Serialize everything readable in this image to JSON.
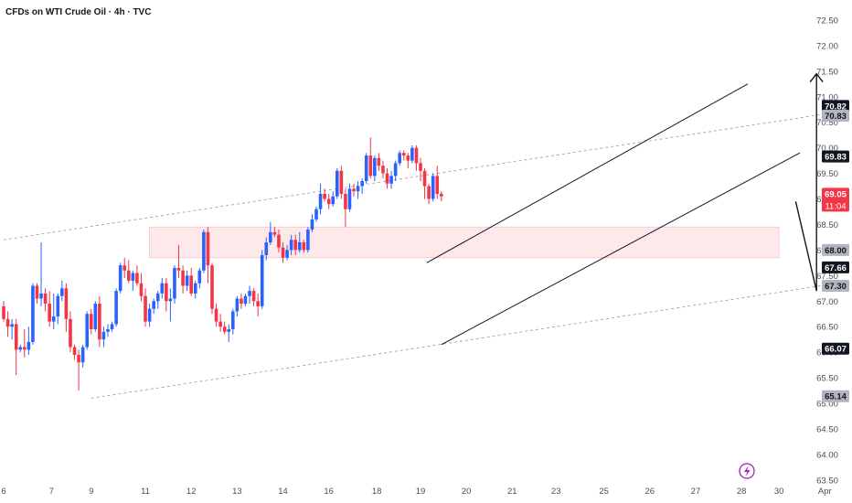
{
  "header": {
    "title": "CFDs on WTI Crude Oil · 4h · TVC"
  },
  "colors": {
    "up": "#2962ff",
    "down": "#f23645",
    "zone": "#fde8ea",
    "zone_border": "#f7c3c8",
    "line": "#131722",
    "dash": "#9598a1",
    "axis_text": "#4a4e5a",
    "logo": "#9c27b0"
  },
  "icons": {
    "watermark": "lightning-bolt-icon"
  },
  "chart_data": {
    "type": "candlestick",
    "title": "CFDs on WTI Crude Oil · 4h · TVC",
    "ylim": [
      63.3,
      72.75
    ],
    "y_ticks": [
      "72.50",
      "72.00",
      "71.50",
      "71.00",
      "70.50",
      "70.00",
      "69.50",
      "69.00",
      "68.50",
      "68.00",
      "67.50",
      "67.00",
      "66.50",
      "66.00",
      "65.50",
      "65.00",
      "64.50",
      "64.00",
      "63.50"
    ],
    "x_ticks": [
      {
        "label": "6",
        "x": 0
      },
      {
        "label": "7",
        "x": 11.5
      },
      {
        "label": "9",
        "x": 21
      },
      {
        "label": "11",
        "x": 34
      },
      {
        "label": "12",
        "x": 45
      },
      {
        "label": "13",
        "x": 56
      },
      {
        "label": "14",
        "x": 67
      },
      {
        "label": "16",
        "x": 78
      },
      {
        "label": "18",
        "x": 89.5
      },
      {
        "label": "19",
        "x": 100
      },
      {
        "label": "20",
        "x": 111
      },
      {
        "label": "21",
        "x": 122
      },
      {
        "label": "23",
        "x": 132.5
      },
      {
        "label": "25",
        "x": 144
      },
      {
        "label": "26",
        "x": 155
      },
      {
        "label": "27",
        "x": 166
      },
      {
        "label": "28",
        "x": 177
      },
      {
        "label": "30",
        "x": 186
      },
      {
        "label": "Apr",
        "x": 197
      }
    ],
    "candles": [
      [
        66.9,
        67.0,
        66.6,
        66.65
      ],
      [
        66.65,
        66.8,
        66.3,
        66.5
      ],
      [
        66.5,
        66.65,
        66.25,
        66.55
      ],
      [
        66.55,
        66.65,
        65.55,
        66.05
      ],
      [
        66.05,
        66.15,
        66.0,
        66.1
      ],
      [
        66.1,
        66.45,
        65.9,
        66.05
      ],
      [
        66.05,
        66.5,
        65.95,
        66.2
      ],
      [
        66.2,
        67.35,
        66.15,
        67.3
      ],
      [
        67.3,
        67.35,
        66.95,
        67.05
      ],
      [
        67.05,
        68.15,
        66.9,
        67.15
      ],
      [
        67.15,
        67.25,
        66.8,
        66.95
      ],
      [
        66.95,
        67.2,
        66.5,
        66.6
      ],
      [
        66.6,
        67.15,
        66.45,
        66.7
      ],
      [
        66.7,
        67.15,
        66.55,
        67.1
      ],
      [
        67.1,
        67.4,
        67.0,
        67.25
      ],
      [
        67.25,
        67.35,
        66.4,
        66.65
      ],
      [
        66.65,
        66.8,
        66.0,
        66.1
      ],
      [
        66.1,
        66.15,
        65.85,
        65.95
      ],
      [
        65.95,
        66.05,
        65.25,
        65.8
      ],
      [
        65.8,
        66.15,
        65.7,
        66.1
      ],
      [
        66.1,
        66.8,
        66.05,
        66.75
      ],
      [
        66.75,
        66.85,
        66.35,
        66.45
      ],
      [
        66.45,
        67.0,
        66.4,
        66.95
      ],
      [
        66.95,
        67.1,
        66.1,
        66.25
      ],
      [
        66.25,
        66.5,
        66.1,
        66.4
      ],
      [
        66.4,
        66.55,
        66.3,
        66.45
      ],
      [
        66.45,
        66.6,
        66.4,
        66.55
      ],
      [
        66.55,
        67.25,
        66.5,
        67.2
      ],
      [
        67.2,
        67.75,
        67.15,
        67.7
      ],
      [
        67.7,
        67.85,
        67.45,
        67.6
      ],
      [
        67.6,
        67.8,
        67.35,
        67.4
      ],
      [
        67.4,
        67.6,
        67.2,
        67.55
      ],
      [
        67.55,
        67.7,
        67.3,
        67.35
      ],
      [
        67.35,
        67.55,
        67.0,
        67.1
      ],
      [
        67.1,
        67.25,
        66.5,
        66.6
      ],
      [
        66.6,
        66.95,
        66.5,
        66.85
      ],
      [
        66.85,
        67.05,
        66.75,
        67.0
      ],
      [
        67.0,
        67.2,
        66.85,
        67.15
      ],
      [
        67.15,
        67.45,
        67.05,
        67.35
      ],
      [
        67.35,
        67.45,
        66.8,
        67.0
      ],
      [
        67.0,
        67.25,
        66.6,
        67.05
      ],
      [
        67.05,
        67.7,
        66.95,
        67.65
      ],
      [
        67.65,
        68.1,
        67.45,
        67.6
      ],
      [
        67.6,
        67.7,
        67.15,
        67.3
      ],
      [
        67.3,
        67.6,
        67.2,
        67.5
      ],
      [
        67.5,
        67.65,
        67.1,
        67.15
      ],
      [
        67.15,
        67.4,
        67.05,
        67.35
      ],
      [
        67.35,
        67.65,
        67.25,
        67.6
      ],
      [
        67.6,
        68.4,
        67.55,
        68.35
      ],
      [
        68.35,
        68.45,
        67.35,
        67.7
      ],
      [
        67.7,
        67.75,
        66.75,
        66.85
      ],
      [
        66.85,
        66.95,
        66.5,
        66.6
      ],
      [
        66.6,
        66.75,
        66.4,
        66.5
      ],
      [
        66.5,
        66.6,
        66.35,
        66.4
      ],
      [
        66.4,
        66.55,
        66.2,
        66.45
      ],
      [
        66.45,
        66.85,
        66.35,
        66.8
      ],
      [
        66.8,
        67.1,
        66.7,
        67.05
      ],
      [
        67.05,
        67.15,
        66.85,
        66.95
      ],
      [
        66.95,
        67.15,
        66.9,
        67.1
      ],
      [
        67.1,
        67.3,
        66.95,
        67.2
      ],
      [
        67.2,
        67.25,
        66.9,
        67.0
      ],
      [
        67.0,
        67.15,
        66.7,
        66.9
      ],
      [
        66.9,
        68.0,
        66.85,
        67.9
      ],
      [
        67.9,
        68.25,
        67.8,
        68.15
      ],
      [
        68.15,
        68.55,
        68.1,
        68.35
      ],
      [
        68.35,
        68.45,
        68.25,
        68.3
      ],
      [
        68.3,
        68.4,
        67.95,
        68.05
      ],
      [
        68.05,
        68.15,
        67.75,
        67.85
      ],
      [
        67.85,
        68.1,
        67.8,
        68.0
      ],
      [
        68.0,
        68.3,
        67.9,
        68.2
      ],
      [
        68.2,
        68.3,
        67.9,
        68.0
      ],
      [
        68.0,
        68.35,
        67.95,
        68.15
      ],
      [
        68.15,
        68.2,
        67.95,
        68.0
      ],
      [
        68.0,
        68.45,
        67.95,
        68.4
      ],
      [
        68.4,
        68.7,
        68.35,
        68.6
      ],
      [
        68.6,
        68.85,
        68.55,
        68.8
      ],
      [
        68.8,
        69.3,
        68.7,
        69.1
      ],
      [
        69.1,
        69.2,
        68.95,
        69.0
      ],
      [
        69.0,
        69.1,
        68.8,
        68.9
      ],
      [
        68.9,
        69.15,
        68.85,
        69.05
      ],
      [
        69.05,
        69.6,
        69.0,
        69.55
      ],
      [
        69.55,
        69.65,
        69.0,
        69.1
      ],
      [
        69.1,
        69.2,
        68.45,
        68.8
      ],
      [
        68.8,
        69.3,
        68.75,
        69.2
      ],
      [
        69.2,
        69.3,
        69.05,
        69.15
      ],
      [
        69.15,
        69.35,
        69.0,
        69.25
      ],
      [
        69.25,
        69.4,
        69.1,
        69.35
      ],
      [
        69.35,
        69.9,
        69.3,
        69.85
      ],
      [
        69.85,
        70.2,
        69.4,
        69.45
      ],
      [
        69.45,
        69.85,
        69.35,
        69.8
      ],
      [
        69.8,
        69.9,
        69.55,
        69.65
      ],
      [
        69.65,
        69.75,
        69.4,
        69.5
      ],
      [
        69.5,
        69.6,
        69.2,
        69.3
      ],
      [
        69.3,
        69.55,
        69.2,
        69.45
      ],
      [
        69.45,
        69.75,
        69.35,
        69.7
      ],
      [
        69.7,
        69.95,
        69.65,
        69.9
      ],
      [
        69.9,
        69.95,
        69.75,
        69.85
      ],
      [
        69.85,
        69.9,
        69.6,
        69.75
      ],
      [
        69.75,
        70.05,
        69.7,
        70.0
      ],
      [
        70.0,
        70.05,
        69.55,
        69.7
      ],
      [
        69.7,
        69.8,
        69.35,
        69.55
      ],
      [
        69.55,
        69.6,
        69.0,
        69.25
      ],
      [
        69.25,
        69.3,
        68.9,
        69.0
      ],
      [
        69.0,
        69.5,
        68.95,
        69.45
      ],
      [
        69.45,
        69.65,
        69.0,
        69.1
      ],
      [
        69.1,
        69.15,
        68.95,
        69.05
      ]
    ],
    "zone": {
      "x0": 35,
      "x1": 186,
      "y0": 67.85,
      "y1": 68.45
    },
    "channel_lines": [
      {
        "x1": 101.5,
        "y1": 67.75,
        "x2": 178.5,
        "y2": 71.25
      },
      {
        "x1": 105,
        "y1": 66.15,
        "x2": 191,
        "y2": 69.9
      }
    ],
    "dashed_lines": [
      {
        "x1": 0,
        "y1": 68.2,
        "x2": 196,
        "y2": 70.65
      },
      {
        "x1": 21,
        "y1": 65.1,
        "x2": 196,
        "y2": 67.3
      }
    ],
    "arrow_up": {
      "x": 195,
      "y1": 67.2,
      "y2": 71.45
    },
    "arrow_down": [
      {
        "x": 190,
        "y": 68.95
      },
      {
        "x": 195,
        "y": 67.2
      }
    ],
    "price_labels": [
      {
        "value": "70.82",
        "y": 70.82,
        "style": "black"
      },
      {
        "value": "70.83",
        "y": 70.63,
        "style": "grey-light"
      },
      {
        "value": "69.83",
        "y": 69.83,
        "style": "black"
      },
      {
        "value": "69.05",
        "y": 69.1,
        "style": "red",
        "sub": "11:04"
      },
      {
        "value": "68.00",
        "y": 68.0,
        "style": "grey-light"
      },
      {
        "value": "67.66",
        "y": 67.66,
        "style": "black"
      },
      {
        "value": "67.30",
        "y": 67.3,
        "style": "grey-light"
      },
      {
        "value": "66.07",
        "y": 66.07,
        "style": "black"
      },
      {
        "value": "65.14",
        "y": 65.14,
        "style": "grey-light"
      }
    ]
  }
}
